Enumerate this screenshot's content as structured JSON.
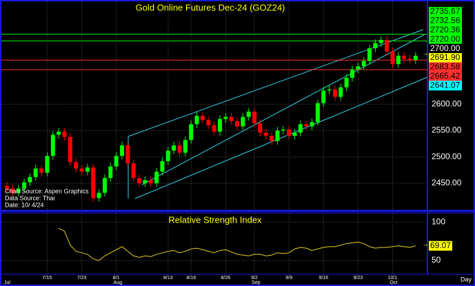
{
  "chart_data": {
    "type": "candlestick",
    "title": "Gold Online Futures Dec-24 (GOZ24)",
    "rsi_title": "Relative Strength Index",
    "x_axis_label": "Day",
    "notes": [
      "Chart Source: Aspen Graphics",
      "Data Source: Thai",
      "Date: 10/ 4/24"
    ],
    "open": [
      2445,
      2440,
      2432,
      2440,
      2452,
      2462,
      2478,
      2470,
      2502,
      2542,
      2548,
      2538,
      2490,
      2478,
      2472,
      2480,
      2422,
      2432,
      2460,
      2482,
      2502,
      2522,
      2488,
      2460,
      2450,
      2456,
      2450,
      2472,
      2492,
      2512,
      2522,
      2508,
      2532,
      2562,
      2578,
      2570,
      2560,
      2548,
      2572,
      2576,
      2568,
      2558,
      2576,
      2586,
      2564,
      2546,
      2540,
      2530,
      2550,
      2552,
      2540,
      2546,
      2562,
      2558,
      2566,
      2602,
      2626,
      2628,
      2614,
      2632,
      2650,
      2666,
      2672,
      2682,
      2706,
      2716,
      2722,
      2700,
      2676,
      2692,
      2686,
      2684
    ],
    "high": [
      2452,
      2447,
      2447,
      2459,
      2469,
      2485,
      2485,
      2509,
      2549,
      2555,
      2555,
      2545,
      2497,
      2485,
      2487,
      2487,
      2439,
      2467,
      2489,
      2509,
      2529,
      2529,
      2495,
      2467,
      2463,
      2463,
      2479,
      2499,
      2519,
      2529,
      2529,
      2539,
      2569,
      2585,
      2585,
      2577,
      2567,
      2579,
      2583,
      2583,
      2575,
      2583,
      2593,
      2593,
      2571,
      2553,
      2547,
      2557,
      2559,
      2559,
      2553,
      2569,
      2569,
      2573,
      2609,
      2633,
      2635,
      2635,
      2639,
      2657,
      2673,
      2679,
      2689,
      2713,
      2723,
      2729,
      2729,
      2707,
      2699,
      2699,
      2693,
      2699
    ],
    "low": [
      2433,
      2425,
      2425,
      2433,
      2445,
      2455,
      2463,
      2463,
      2495,
      2535,
      2531,
      2483,
      2471,
      2465,
      2465,
      2415,
      2415,
      2425,
      2453,
      2475,
      2495,
      2481,
      2453,
      2443,
      2443,
      2443,
      2443,
      2465,
      2485,
      2505,
      2501,
      2501,
      2525,
      2555,
      2563,
      2553,
      2541,
      2541,
      2565,
      2561,
      2551,
      2551,
      2569,
      2557,
      2539,
      2533,
      2523,
      2523,
      2543,
      2533,
      2533,
      2539,
      2551,
      2551,
      2559,
      2595,
      2619,
      2607,
      2607,
      2625,
      2643,
      2659,
      2665,
      2675,
      2699,
      2709,
      2693,
      2669,
      2669,
      2679,
      2677,
      2677
    ],
    "close": [
      2440,
      2432,
      2440,
      2452,
      2462,
      2478,
      2470,
      2502,
      2542,
      2548,
      2538,
      2490,
      2478,
      2472,
      2480,
      2422,
      2432,
      2460,
      2482,
      2502,
      2522,
      2488,
      2460,
      2450,
      2456,
      2450,
      2472,
      2492,
      2512,
      2522,
      2508,
      2532,
      2562,
      2578,
      2570,
      2560,
      2548,
      2572,
      2576,
      2568,
      2558,
      2576,
      2586,
      2564,
      2546,
      2540,
      2530,
      2550,
      2552,
      2540,
      2546,
      2562,
      2558,
      2566,
      2602,
      2626,
      2628,
      2614,
      2632,
      2650,
      2666,
      2672,
      2682,
      2706,
      2716,
      2722,
      2700,
      2676,
      2692,
      2686,
      2684,
      2691.9
    ],
    "up_color": "#00ff00",
    "down_color": "#ff0000",
    "ylim": [
      2399,
      2795
    ],
    "yticks": [
      {
        "value": 2450,
        "label": "2450.00"
      },
      {
        "value": 2500,
        "label": "2500.00"
      },
      {
        "value": 2550,
        "label": "2550.00"
      },
      {
        "value": 2600,
        "label": "2600.00"
      }
    ],
    "grid": true,
    "levels": [
      {
        "value": 2735.67,
        "label": "2735.67",
        "color": "#00ff00",
        "line": false
      },
      {
        "value": 2732.56,
        "label": "2732.56",
        "color": "#00ff00",
        "line": true
      },
      {
        "value": 2720.36,
        "label": "2720.36",
        "color": "#00ff00",
        "line": false
      },
      {
        "value": 2720,
        "label": "2720.00",
        "color": "#00ff00",
        "line": true
      },
      {
        "value": 2700,
        "label": "2700.00",
        "color": "#000000",
        "line": false
      },
      {
        "value": 2691.9,
        "label": "2691.90",
        "color": "#ffff00",
        "line": false
      },
      {
        "value": 2683.58,
        "label": "2683.58",
        "color": "#ff3030",
        "line": true
      },
      {
        "value": 2665.42,
        "label": "2665.42",
        "color": "#ff3030",
        "line": true
      },
      {
        "value": 2641.07,
        "label": "2641.07",
        "color": "#00ffff",
        "line": false
      }
    ],
    "x_ticks": [
      {
        "index": 7,
        "label": "7/15"
      },
      {
        "index": 13,
        "label": "7/23"
      },
      {
        "index": 19,
        "label": "8/1"
      },
      {
        "index": 28,
        "label": "8/13"
      },
      {
        "index": 32,
        "label": "8/19"
      },
      {
        "index": 38,
        "label": "8/26"
      },
      {
        "index": 43,
        "label": "9/2"
      },
      {
        "index": 49,
        "label": "9/9"
      },
      {
        "index": 55,
        "label": "9/16"
      },
      {
        "index": 61,
        "label": "9/23"
      },
      {
        "index": 67,
        "label": "10/1"
      }
    ],
    "months": [
      {
        "index": 0,
        "label": "Jul"
      },
      {
        "index": 19,
        "label": "Aug"
      },
      {
        "index": 43,
        "label": "Sep"
      },
      {
        "index": 67,
        "label": "Oct"
      }
    ],
    "rsi": {
      "color": "#e8d020",
      "ylim": [
        32,
        111
      ],
      "yticks": [
        100,
        50
      ],
      "values": [
        null,
        null,
        null,
        null,
        null,
        null,
        null,
        null,
        null,
        92,
        88,
        70,
        62,
        60,
        58,
        52,
        50,
        56,
        60,
        64,
        68,
        62,
        56,
        54,
        56,
        55,
        58,
        60,
        62,
        63,
        60,
        62,
        65,
        66,
        64,
        62,
        60,
        63,
        64,
        61,
        58,
        57,
        56,
        58,
        58,
        56,
        57,
        60,
        59,
        60,
        65,
        67,
        66,
        63,
        65,
        67,
        68,
        68,
        70,
        72,
        73,
        74,
        72,
        68,
        66,
        67,
        67,
        68,
        69,
        68,
        67,
        69.07
      ]
    }
  }
}
